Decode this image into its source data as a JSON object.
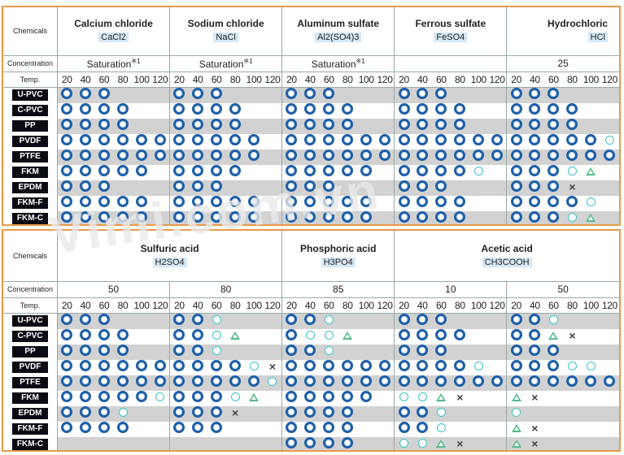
{
  "labels": {
    "chemicals": "Chemicals",
    "concentration": "Concentration",
    "temp": "Temp."
  },
  "temps": [
    "20",
    "40",
    "60",
    "80",
    "100",
    "120"
  ],
  "materials": [
    "U-PVC",
    "C-PVC",
    "PP",
    "PVDF",
    "PTFE",
    "FKM",
    "EPDM",
    "FKM-F",
    "FKM-C"
  ],
  "legend_symbols": {
    "dbl": "double-circle",
    "open": "circle",
    "tri": "triangle",
    "x": "cross"
  },
  "colors": {
    "border": "#e79a4a",
    "double_circle": "#1f5fa6",
    "circle": "#3cc3c9",
    "triangle": "#55b98a",
    "material_label_bg": "#0b0b14",
    "formula_bg": "#d6e8f5"
  },
  "watermark": "Vimi.com.vn",
  "top": {
    "chemicals": [
      {
        "name": "Calcium chloride",
        "formula": "CaCl2",
        "concentration": "Saturation",
        "footnote": "※1",
        "rows": [
          [
            "dbl",
            "dbl",
            "dbl",
            "",
            "",
            ""
          ],
          [
            "dbl",
            "dbl",
            "dbl",
            "dbl",
            "",
            ""
          ],
          [
            "dbl",
            "dbl",
            "dbl",
            "dbl",
            "",
            ""
          ],
          [
            "dbl",
            "dbl",
            "dbl",
            "dbl",
            "dbl",
            "dbl"
          ],
          [
            "dbl",
            "dbl",
            "dbl",
            "dbl",
            "dbl",
            "dbl"
          ],
          [
            "dbl",
            "dbl",
            "dbl",
            "dbl",
            "dbl",
            ""
          ],
          [
            "dbl",
            "dbl",
            "dbl",
            "",
            "",
            ""
          ],
          [
            "dbl",
            "dbl",
            "dbl",
            "dbl",
            "dbl",
            ""
          ],
          [
            "dbl",
            "dbl",
            "dbl",
            "dbl",
            "dbl",
            ""
          ]
        ]
      },
      {
        "name": "Sodium chloride",
        "formula": "NaCl",
        "concentration": "Saturation",
        "footnote": "※1",
        "rows": [
          [
            "dbl",
            "dbl",
            "dbl",
            "",
            "",
            ""
          ],
          [
            "dbl",
            "dbl",
            "dbl",
            "dbl",
            "",
            ""
          ],
          [
            "dbl",
            "dbl",
            "dbl",
            "dbl",
            "",
            ""
          ],
          [
            "dbl",
            "dbl",
            "dbl",
            "dbl",
            "dbl",
            ""
          ],
          [
            "dbl",
            "dbl",
            "dbl",
            "dbl",
            "dbl",
            ""
          ],
          [
            "dbl",
            "dbl",
            "dbl",
            "dbl",
            "",
            ""
          ],
          [
            "dbl",
            "dbl",
            "dbl",
            "",
            "",
            ""
          ],
          [
            "dbl",
            "dbl",
            "dbl",
            "dbl",
            "dbl",
            ""
          ],
          [
            "dbl",
            "dbl",
            "dbl",
            "dbl",
            "dbl",
            ""
          ]
        ]
      },
      {
        "name": "Aluminum sulfate",
        "formula": "Al2(SO4)3",
        "concentration": "Saturation",
        "footnote": "※1",
        "rows": [
          [
            "dbl",
            "dbl",
            "dbl",
            "",
            "",
            ""
          ],
          [
            "dbl",
            "dbl",
            "dbl",
            "dbl",
            "",
            ""
          ],
          [
            "dbl",
            "dbl",
            "dbl",
            "dbl",
            "",
            ""
          ],
          [
            "dbl",
            "dbl",
            "dbl",
            "dbl",
            "dbl",
            "dbl"
          ],
          [
            "dbl",
            "dbl",
            "dbl",
            "dbl",
            "dbl",
            "dbl"
          ],
          [
            "dbl",
            "dbl",
            "dbl",
            "dbl",
            "dbl",
            ""
          ],
          [
            "dbl",
            "dbl",
            "dbl",
            "",
            "",
            ""
          ],
          [
            "dbl",
            "dbl",
            "dbl",
            "dbl",
            "dbl",
            ""
          ],
          [
            "dbl",
            "dbl",
            "dbl",
            "dbl",
            "dbl",
            ""
          ]
        ]
      },
      {
        "name": "Ferrous sulfate",
        "formula": "FeSO4",
        "concentration": "",
        "footnote": "",
        "rows": [
          [
            "dbl",
            "dbl",
            "dbl",
            "",
            "",
            ""
          ],
          [
            "dbl",
            "dbl",
            "dbl",
            "dbl",
            "",
            ""
          ],
          [
            "dbl",
            "dbl",
            "dbl",
            "dbl",
            "",
            ""
          ],
          [
            "dbl",
            "dbl",
            "dbl",
            "dbl",
            "dbl",
            "dbl"
          ],
          [
            "dbl",
            "dbl",
            "dbl",
            "dbl",
            "dbl",
            "dbl"
          ],
          [
            "dbl",
            "dbl",
            "dbl",
            "dbl",
            "open",
            ""
          ],
          [
            "dbl",
            "dbl",
            "dbl",
            "",
            "",
            ""
          ],
          [
            "dbl",
            "dbl",
            "dbl",
            "dbl",
            "",
            ""
          ],
          [
            "dbl",
            "dbl",
            "dbl",
            "dbl",
            "",
            ""
          ]
        ]
      },
      {
        "name": "Hydrochloric",
        "formula": "HCl",
        "concentration": "25",
        "footnote": "",
        "rows": [
          [
            "dbl",
            "dbl",
            "dbl",
            "",
            "",
            ""
          ],
          [
            "dbl",
            "dbl",
            "dbl",
            "dbl",
            "",
            ""
          ],
          [
            "dbl",
            "dbl",
            "dbl",
            "dbl",
            "",
            ""
          ],
          [
            "dbl",
            "dbl",
            "dbl",
            "dbl",
            "dbl",
            "open"
          ],
          [
            "dbl",
            "dbl",
            "dbl",
            "dbl",
            "dbl",
            "dbl"
          ],
          [
            "dbl",
            "dbl",
            "dbl",
            "open",
            "tri",
            ""
          ],
          [
            "dbl",
            "dbl",
            "dbl",
            "x",
            "",
            ""
          ],
          [
            "dbl",
            "dbl",
            "dbl",
            "dbl",
            "open",
            ""
          ],
          [
            "dbl",
            "dbl",
            "dbl",
            "open",
            "tri",
            ""
          ]
        ]
      }
    ]
  },
  "bottom": {
    "chemicals": [
      {
        "name": "Sulfuric acid",
        "formula": "H2SO4",
        "concentrations": [
          {
            "value": "50",
            "rows": [
              [
                "dbl",
                "dbl",
                "dbl",
                "",
                "",
                ""
              ],
              [
                "dbl",
                "dbl",
                "dbl",
                "dbl",
                "",
                ""
              ],
              [
                "dbl",
                "dbl",
                "dbl",
                "dbl",
                "",
                ""
              ],
              [
                "dbl",
                "dbl",
                "dbl",
                "dbl",
                "dbl",
                "dbl"
              ],
              [
                "dbl",
                "dbl",
                "dbl",
                "dbl",
                "dbl",
                "dbl"
              ],
              [
                "dbl",
                "dbl",
                "dbl",
                "dbl",
                "dbl",
                "open"
              ],
              [
                "dbl",
                "dbl",
                "dbl",
                "open",
                "",
                ""
              ],
              [
                "dbl",
                "dbl",
                "dbl",
                "dbl",
                "",
                ""
              ],
              [
                "",
                "",
                "",
                "",
                "",
                ""
              ]
            ]
          },
          {
            "value": "80",
            "rows": [
              [
                "dbl",
                "dbl",
                "open",
                "",
                "",
                ""
              ],
              [
                "dbl",
                "dbl",
                "open",
                "tri",
                "",
                ""
              ],
              [
                "dbl",
                "dbl",
                "open",
                "",
                "",
                ""
              ],
              [
                "dbl",
                "dbl",
                "dbl",
                "dbl",
                "open",
                "x"
              ],
              [
                "dbl",
                "dbl",
                "dbl",
                "dbl",
                "dbl",
                "open"
              ],
              [
                "dbl",
                "dbl",
                "dbl",
                "open",
                "tri",
                ""
              ],
              [
                "dbl",
                "dbl",
                "dbl",
                "x",
                "",
                ""
              ],
              [
                "dbl",
                "dbl",
                "dbl",
                "",
                "",
                ""
              ],
              [
                "",
                "",
                "",
                "",
                "",
                ""
              ]
            ]
          }
        ]
      },
      {
        "name": "Phosphoric acid",
        "formula": "H3PO4",
        "concentrations": [
          {
            "value": "85",
            "rows": [
              [
                "dbl",
                "dbl",
                "open",
                "",
                "",
                ""
              ],
              [
                "dbl",
                "open",
                "open",
                "tri",
                "",
                ""
              ],
              [
                "dbl",
                "dbl",
                "open",
                "",
                "",
                ""
              ],
              [
                "dbl",
                "dbl",
                "dbl",
                "dbl",
                "dbl",
                "dbl"
              ],
              [
                "dbl",
                "dbl",
                "dbl",
                "dbl",
                "dbl",
                "dbl"
              ],
              [
                "dbl",
                "dbl",
                "dbl",
                "dbl",
                "dbl",
                ""
              ],
              [
                "dbl",
                "dbl",
                "dbl",
                "dbl",
                "",
                ""
              ],
              [
                "dbl",
                "dbl",
                "dbl",
                "dbl",
                "",
                ""
              ],
              [
                "dbl",
                "dbl",
                "dbl",
                "dbl",
                "",
                ""
              ]
            ]
          }
        ]
      },
      {
        "name": "Acetic acid",
        "formula": "CH3COOH",
        "concentrations": [
          {
            "value": "10",
            "rows": [
              [
                "dbl",
                "dbl",
                "dbl",
                "",
                "",
                ""
              ],
              [
                "dbl",
                "dbl",
                "dbl",
                "dbl",
                "",
                ""
              ],
              [
                "dbl",
                "dbl",
                "dbl",
                "",
                "",
                ""
              ],
              [
                "dbl",
                "dbl",
                "dbl",
                "dbl",
                "open",
                ""
              ],
              [
                "dbl",
                "dbl",
                "dbl",
                "dbl",
                "dbl",
                "dbl"
              ],
              [
                "open",
                "open",
                "tri",
                "x",
                "",
                ""
              ],
              [
                "dbl",
                "dbl",
                "open",
                "",
                "",
                ""
              ],
              [
                "dbl",
                "dbl",
                "open",
                "",
                "",
                ""
              ],
              [
                "open",
                "open",
                "tri",
                "x",
                "",
                ""
              ]
            ]
          },
          {
            "value": "50",
            "rows": [
              [
                "dbl",
                "dbl",
                "open",
                "",
                "",
                ""
              ],
              [
                "dbl",
                "dbl",
                "tri",
                "x",
                "",
                ""
              ],
              [
                "dbl",
                "dbl",
                "dbl",
                "",
                "",
                ""
              ],
              [
                "dbl",
                "dbl",
                "dbl",
                "open",
                "open",
                ""
              ],
              [
                "dbl",
                "dbl",
                "dbl",
                "dbl",
                "dbl",
                "dbl"
              ],
              [
                "tri",
                "x",
                "",
                "",
                "",
                ""
              ],
              [
                "open",
                "",
                "",
                "",
                "",
                ""
              ],
              [
                "tri",
                "x",
                "",
                "",
                "",
                ""
              ],
              [
                "tri",
                "x",
                "",
                "",
                "",
                ""
              ]
            ]
          }
        ]
      }
    ]
  }
}
